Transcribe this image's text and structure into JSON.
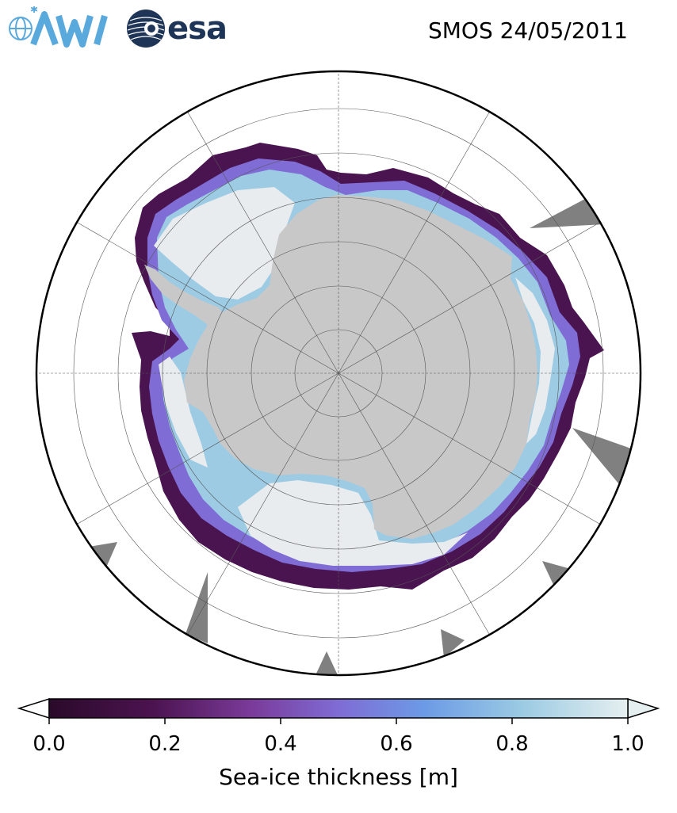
{
  "header": {
    "title": "SMOS 24/05/2011",
    "logos": [
      {
        "name": "AWI",
        "icon": "awi-logo",
        "color": "#5aa9dd"
      },
      {
        "name": "esa",
        "icon": "esa-logo",
        "color": "#1f3558"
      }
    ]
  },
  "map": {
    "projection": "south-polar-stereographic",
    "colors": {
      "land": "#c8c8c8",
      "missing_data": "#808080",
      "thick_ice": "#e8ecee",
      "ocean": "#ffffff"
    }
  },
  "colorbar": {
    "label": "Sea-ice thickness [m]",
    "ticks": [
      "0.0",
      "0.2",
      "0.4",
      "0.6",
      "0.8",
      "1.0"
    ],
    "range": [
      0.0,
      1.0
    ],
    "extend": "both",
    "colormap_stops": [
      "#2a0a2a",
      "#4c1350",
      "#7a3b9a",
      "#7f6cd5",
      "#6c9be6",
      "#9ccbe3",
      "#e6eff0"
    ]
  }
}
